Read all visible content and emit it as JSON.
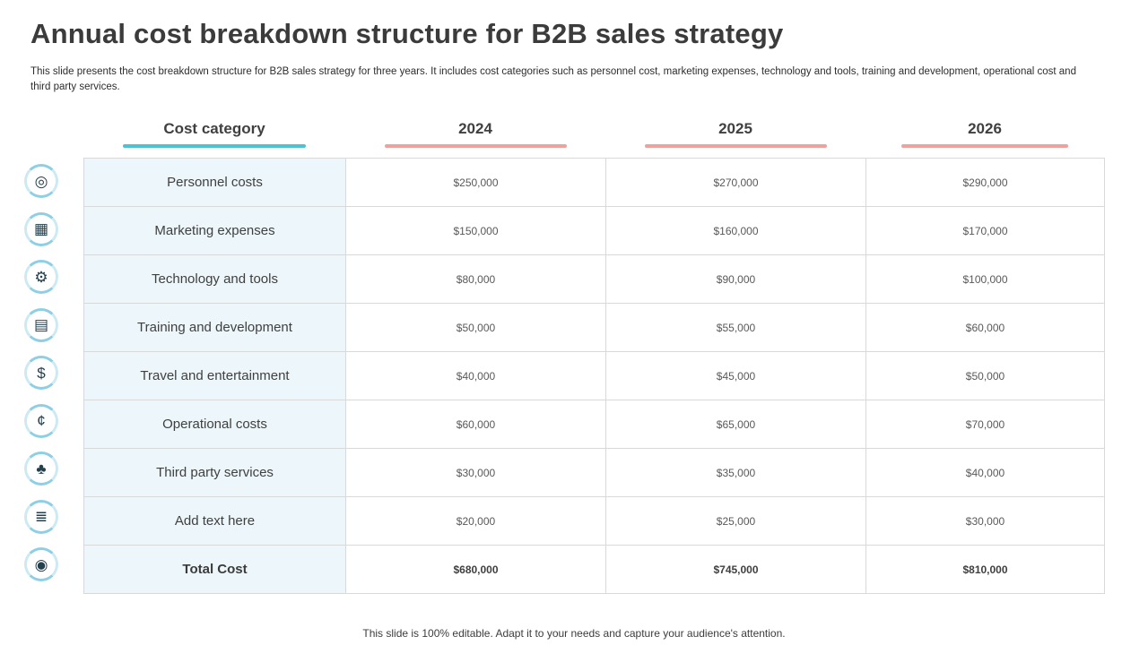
{
  "slide": {
    "title": "Annual cost breakdown structure for B2B sales strategy",
    "subtitle": "This slide presents the cost breakdown structure for B2B sales strategy for three years. It includes cost categories such as personnel cost, marketing expenses, technology and tools, training and development, operational cost and third party services.",
    "footer": "This slide is 100% editable. Adapt it to your needs and capture your audience's attention."
  },
  "colors": {
    "accent_teal": "#49c3d6",
    "accent_salmon": "#f0a19b",
    "category_column_bg": "#edf6fb",
    "icon_ring": "#8fcfe6",
    "grid_line": "#d9d9d9",
    "title_text": "#3b3b3b"
  },
  "icons": [
    {
      "name": "target-arrow-icon",
      "glyph": "◎"
    },
    {
      "name": "image-icon",
      "glyph": "▦"
    },
    {
      "name": "gear-icon",
      "glyph": "⚙"
    },
    {
      "name": "presentation-chart-icon",
      "glyph": "▤"
    },
    {
      "name": "currency-exchange-icon",
      "glyph": "$"
    },
    {
      "name": "money-settings-icon",
      "glyph": "¢"
    },
    {
      "name": "hand-plant-icon",
      "glyph": "♣"
    },
    {
      "name": "financial-report-icon",
      "glyph": "≣"
    },
    {
      "name": "camera-icon",
      "glyph": "◉"
    }
  ],
  "table": {
    "headers": [
      "Cost category",
      "2024",
      "2025",
      "2026"
    ],
    "rows": [
      {
        "category": "Personnel costs",
        "values": [
          "$250,000",
          "$270,000",
          "$290,000"
        ]
      },
      {
        "category": "Marketing expenses",
        "values": [
          "$150,000",
          "$160,000",
          "$170,000"
        ]
      },
      {
        "category": "Technology and tools",
        "values": [
          "$80,000",
          "$90,000",
          "$100,000"
        ]
      },
      {
        "category": "Training and development",
        "values": [
          "$50,000",
          "$55,000",
          "$60,000"
        ]
      },
      {
        "category": "Travel and entertainment",
        "values": [
          "$40,000",
          "$45,000",
          "$50,000"
        ]
      },
      {
        "category": "Operational costs",
        "values": [
          "$60,000",
          "$65,000",
          "$70,000"
        ]
      },
      {
        "category": "Third party services",
        "values": [
          "$30,000",
          "$35,000",
          "$40,000"
        ]
      },
      {
        "category": "Add text here",
        "values": [
          "$20,000",
          "$25,000",
          "$30,000"
        ]
      },
      {
        "category": "Total Cost",
        "values": [
          "$680,000",
          "$745,000",
          "$810,000"
        ]
      }
    ]
  },
  "chart_data": {
    "type": "table",
    "title": "Annual cost breakdown structure for B2B sales strategy",
    "categories": [
      "Personnel costs",
      "Marketing expenses",
      "Technology and tools",
      "Training and development",
      "Travel and entertainment",
      "Operational costs",
      "Third party services",
      "Add text here",
      "Total Cost"
    ],
    "series": [
      {
        "name": "2024",
        "values": [
          250000,
          150000,
          80000,
          50000,
          40000,
          60000,
          30000,
          20000,
          680000
        ]
      },
      {
        "name": "2025",
        "values": [
          270000,
          160000,
          90000,
          55000,
          45000,
          65000,
          35000,
          25000,
          745000
        ]
      },
      {
        "name": "2026",
        "values": [
          290000,
          170000,
          100000,
          60000,
          50000,
          70000,
          40000,
          30000,
          810000
        ]
      }
    ]
  }
}
